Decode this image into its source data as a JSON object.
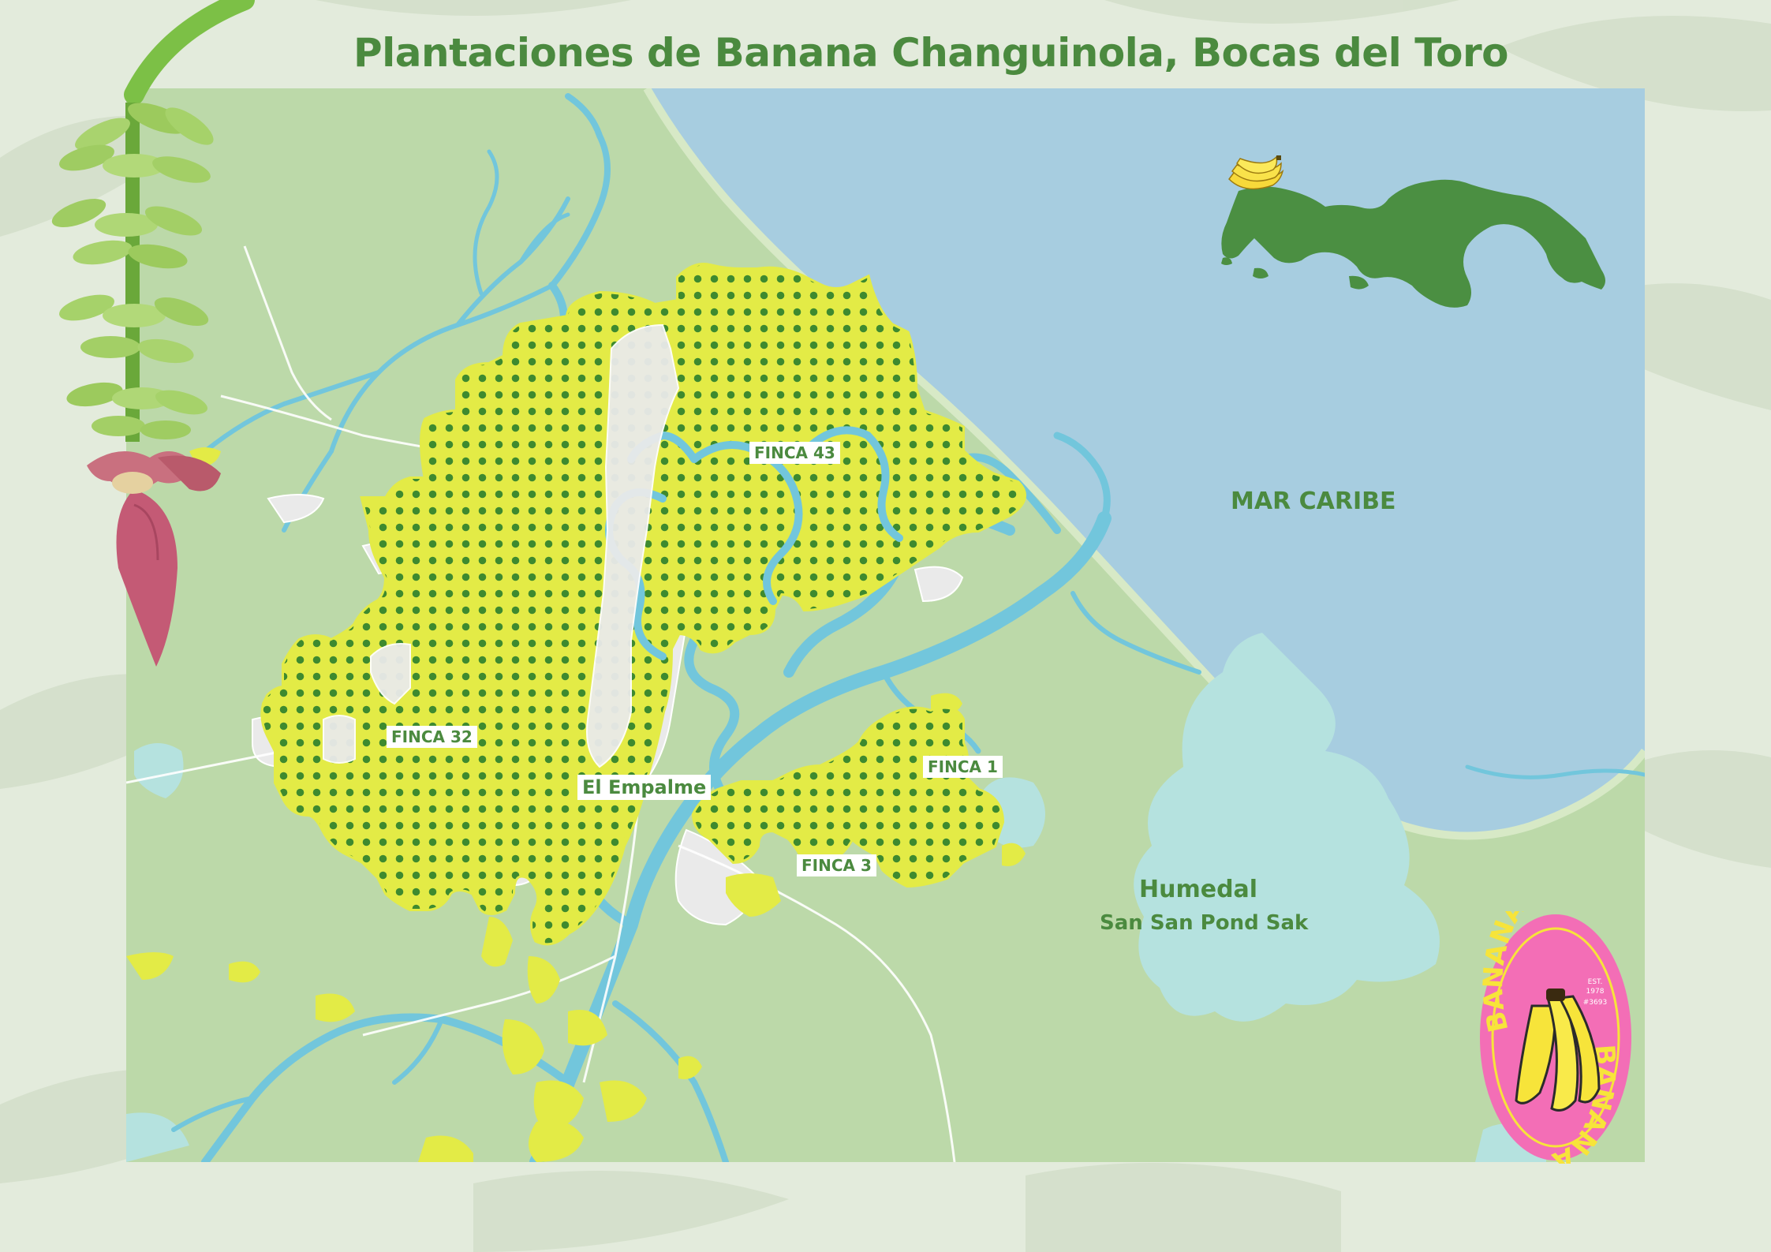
{
  "title": "Plantaciones de Banana Changuinola, Bocas del Toro",
  "labels": {
    "finca_43": "FINCA 43",
    "finca_32": "FINCA 32",
    "el_empalme": "El Empalme",
    "finca_1": "FINCA 1",
    "finca_3": "FINCA 3"
  },
  "areas": {
    "sea": "MAR CARIBE",
    "wetland_title": "Humedal",
    "wetland_name": "San San Pond Sak"
  },
  "badge": {
    "top_text": "BANANA",
    "bottom_text": "BANANA",
    "est": "EST.",
    "year": "1978",
    "code": "#3693"
  },
  "colors": {
    "land": "#bcd9a9",
    "sea": "#a7cde0",
    "river": "#72c6dc",
    "wetland": "#b5e2df",
    "plantation": "#e3eb46",
    "dots": "#3e8a2f",
    "urban": "#eaeaea",
    "panama": "#4b8f42",
    "badge": "#f36eb6",
    "banana": "#f7e43a",
    "text_green": "#4b8a3f"
  },
  "icons": {
    "plant": "banana-plant-icon",
    "badge": "banana-badge-icon",
    "locator": "panama-locator-icon"
  }
}
